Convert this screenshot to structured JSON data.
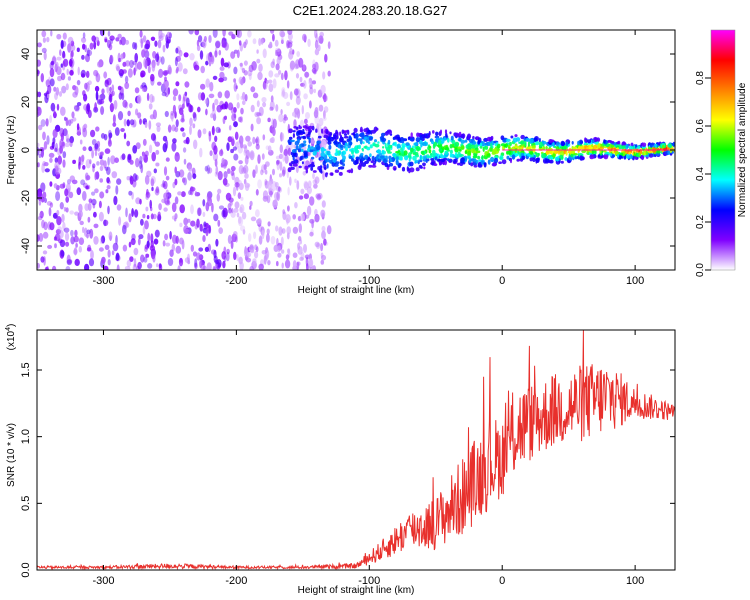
{
  "title": "C2E1.2024.283.20.18.G27",
  "colors": {
    "frame": "#000000",
    "snr_line": "#e8302c",
    "background": "#ffffff"
  },
  "chart_data": [
    {
      "type": "heatmap",
      "name": "spectrogram",
      "xlabel": "Height of straight line (km)",
      "ylabel": "Frequency (Hz)",
      "xlim": [
        -350,
        130
      ],
      "ylim": [
        -50,
        50
      ],
      "xticks": [
        -300,
        -200,
        -100,
        0,
        100
      ],
      "xtick_labels": [
        "-300",
        "-200",
        "-100",
        "0",
        "100"
      ],
      "yticks": [
        -40,
        -20,
        0,
        20,
        40
      ],
      "ytick_labels": [
        "-40",
        "-20",
        "0",
        "20",
        "40"
      ],
      "colorbar": {
        "label": "Normalized spectral amplitude",
        "range": [
          0,
          1
        ],
        "ticks": [
          0.0,
          0.2,
          0.4,
          0.6,
          0.8
        ],
        "tick_labels": [
          "0.0",
          "0.2",
          "0.4",
          "0.6",
          "0.8"
        ],
        "colormap": [
          "#ffffff",
          "#8000ff",
          "#0000ff",
          "#00ffff",
          "#00ff00",
          "#ffff00",
          "#ff8000",
          "#ff0000",
          "#ff00ff"
        ]
      },
      "regions": [
        {
          "x_from": -350,
          "x_to": -130,
          "description": "broadband noise across all frequencies"
        },
        {
          "x_from": -160,
          "x_to": 130,
          "center_hz": 0,
          "half_width_hz_start": 10,
          "half_width_hz_end": 2,
          "description": "narrow signal band near 0 Hz"
        }
      ]
    },
    {
      "type": "line",
      "name": "snr",
      "xlabel": "Height of straight line (km)",
      "ylabel": "SNR (10 * v/v)",
      "scale_label": "(x10",
      "scale_exponent": "4",
      "scale_close": ")",
      "xlim": [
        -350,
        130
      ],
      "ylim": [
        0,
        1.8
      ],
      "xticks": [
        -300,
        -200,
        -100,
        0,
        100
      ],
      "xtick_labels": [
        "-300",
        "-200",
        "-100",
        "0",
        "100"
      ],
      "yticks": [
        0,
        0.5,
        1.0,
        1.5
      ],
      "ytick_labels": [
        "0.0",
        "0.5",
        "1.0",
        "1.5"
      ],
      "envelope": {
        "x": [
          -350,
          -300,
          -250,
          -200,
          -150,
          -110,
          -90,
          -70,
          -50,
          -30,
          -10,
          0,
          10,
          20,
          40,
          60,
          80,
          100,
          130
        ],
        "mean": [
          0.02,
          0.02,
          0.03,
          0.02,
          0.02,
          0.03,
          0.15,
          0.3,
          0.35,
          0.55,
          0.8,
          0.85,
          1.05,
          1.1,
          1.2,
          1.25,
          1.3,
          1.25,
          1.18
        ],
        "amp": [
          0.01,
          0.01,
          0.02,
          0.01,
          0.01,
          0.02,
          0.08,
          0.15,
          0.2,
          0.3,
          0.35,
          0.3,
          0.35,
          0.3,
          0.28,
          0.3,
          0.28,
          0.12,
          0.06
        ]
      }
    }
  ]
}
